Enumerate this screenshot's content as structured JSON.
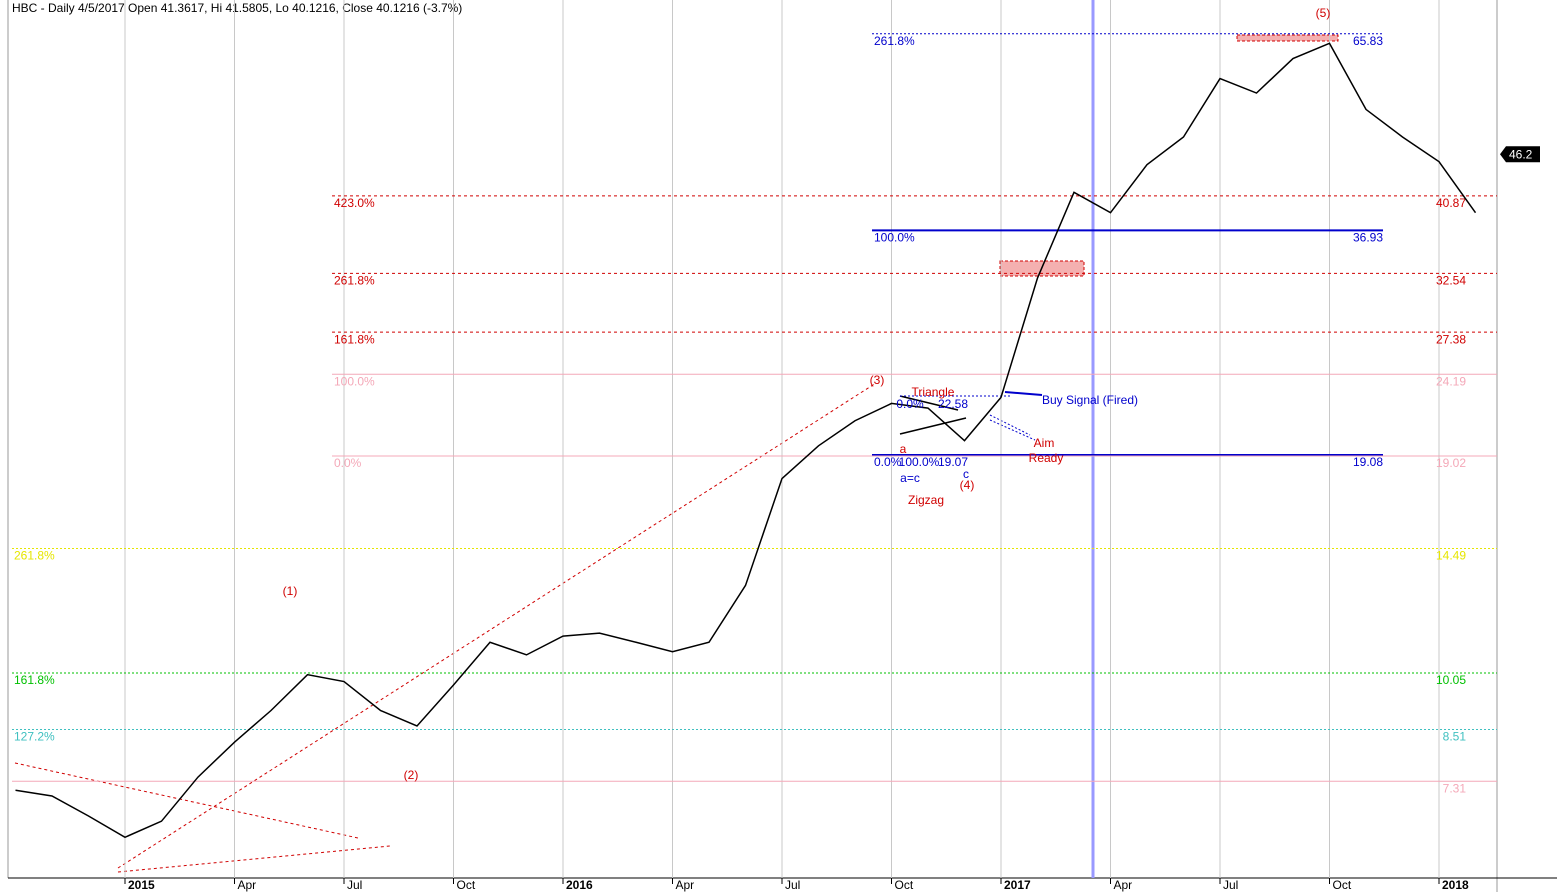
{
  "chart_data": {
    "type": "line",
    "title": "HBC - Daily 4/5/2017 Open 41.3617, Hi 41.5805, Lo 40.1216, Close 40.1216 (-3.7%)",
    "categories": [
      null,
      null,
      null,
      "2015",
      null,
      null,
      "Apr",
      null,
      null,
      "Jul",
      null,
      null,
      "Oct",
      null,
      null,
      "2016",
      null,
      null,
      "Apr",
      null,
      null,
      "Jul",
      null,
      null,
      "Oct",
      null,
      null,
      "2017",
      null,
      null,
      "Apr",
      null,
      null,
      "Jul",
      null,
      null,
      "Oct",
      null,
      null,
      "2018",
      null
    ],
    "series": [
      {
        "name": "HBC",
        "color": "#000000",
        "values": [
          7.12,
          7.0,
          6.6,
          6.2,
          6.5,
          7.4,
          8.2,
          9.0,
          10.0,
          9.8,
          9.0,
          8.6,
          9.7,
          11.0,
          10.6,
          11.2,
          11.3,
          11.0,
          10.7,
          11.0,
          13.0,
          17.8,
          19.6,
          21.1,
          22.2,
          21.9,
          19.9,
          22.6,
          32.1,
          41.3,
          38.9,
          44.8,
          48.6,
          57.7,
          55.3,
          61.2,
          64.0,
          52.7,
          48.6,
          45.2,
          38.9
        ]
      }
    ],
    "ylim": [
      5.5,
      72.7
    ],
    "log_scale": true,
    "grid": true,
    "last_price": 46.2,
    "levels": [
      {
        "label": "261.8%",
        "value": 65.83,
        "color": "#0000cc",
        "style": "dotted"
      },
      {
        "label": "423.0%",
        "value": 40.87,
        "color": "#d00000",
        "style": "dashed"
      },
      {
        "label": "100.0%",
        "value": 36.93,
        "color": "#0000cc",
        "style": "solid"
      },
      {
        "label": "261.8%",
        "value": 32.54,
        "color": "#d00000",
        "style": "dashed"
      },
      {
        "label": "161.8%",
        "value": 27.38,
        "color": "#d00000",
        "style": "dashed"
      },
      {
        "label": "100.0%",
        "value": 24.19,
        "color": "#f4a8b8",
        "style": "solid"
      },
      {
        "label": "0.0%",
        "value": 19.08,
        "color": "#0000cc",
        "style": "solid"
      },
      {
        "label": "0.0%",
        "value": 19.02,
        "color": "#f4a8b8",
        "style": "solid"
      },
      {
        "label": "261.8%",
        "value": 14.49,
        "color": "#e6e600",
        "style": "dotted"
      },
      {
        "label": "161.8%",
        "value": 10.05,
        "color": "#00c000",
        "style": "dotted"
      },
      {
        "label": "127.2%",
        "value": 8.51,
        "color": "#40c0c0",
        "style": "dotted"
      },
      {
        "value": 7.31,
        "color": "#f4a8b8",
        "style": "solid"
      }
    ],
    "annotations": [
      "(5)",
      "(3)",
      "(4)",
      "(1)",
      "(2)",
      "Triangle",
      "0.0%",
      "22.58",
      "a",
      "c",
      "100.0%",
      "19.07",
      "a=c",
      "Zigzag",
      "Buy Signal (Fired)",
      "Aim",
      "Ready"
    ]
  }
}
